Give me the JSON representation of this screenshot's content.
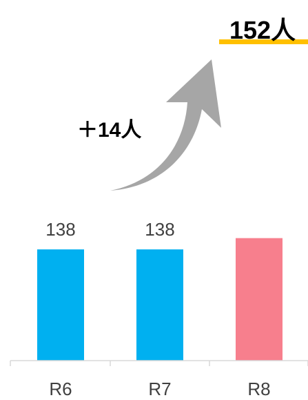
{
  "chart_data": {
    "type": "bar",
    "categories": [
      "R6",
      "R7",
      "R8"
    ],
    "values": [
      138,
      138,
      152
    ],
    "data_labels": [
      "138",
      "138",
      "152人"
    ],
    "annotation": {
      "text": "＋14人"
    },
    "colors": {
      "normal": "#00b0f0",
      "highlight": "#f77f8d",
      "arrow": "#a6a6a6",
      "label_marker": "#ffc000",
      "axis": "#d9d9d9"
    },
    "grid": false
  }
}
